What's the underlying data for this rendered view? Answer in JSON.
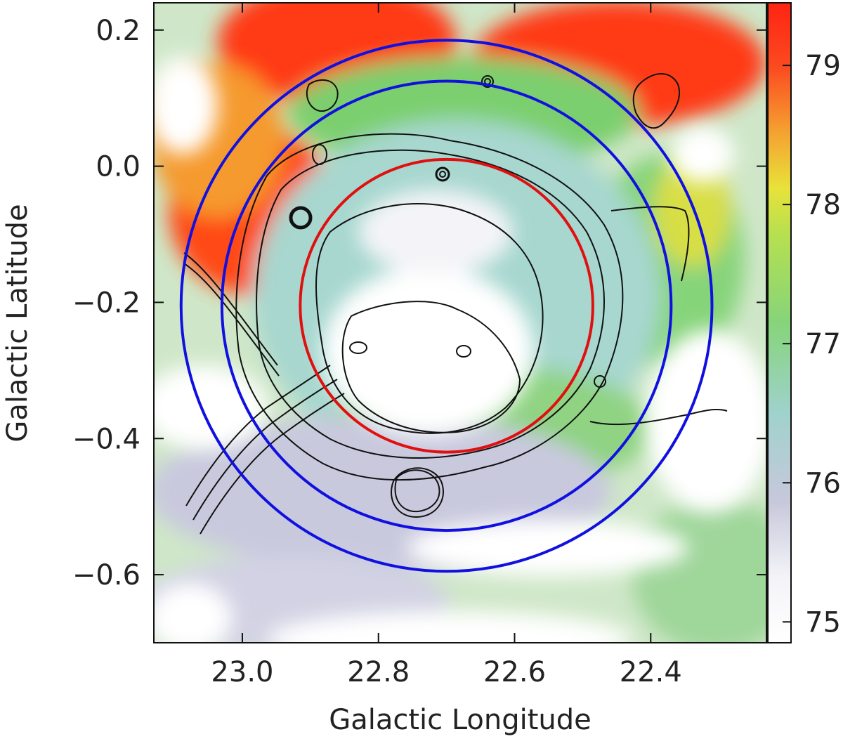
{
  "chart_data": {
    "type": "heatmap",
    "title": "",
    "xlabel": "Galactic Longitude",
    "ylabel": "Galactic Latitude",
    "xlim": [
      23.13,
      22.23
    ],
    "ylim": [
      -0.7,
      0.24
    ],
    "x_ticks": [
      {
        "value": 23.0,
        "label": "23.0"
      },
      {
        "value": 22.8,
        "label": "22.8"
      },
      {
        "value": 22.6,
        "label": "22.6"
      },
      {
        "value": 22.4,
        "label": "22.4"
      }
    ],
    "y_ticks": [
      {
        "value": 0.2,
        "label": "0.2"
      },
      {
        "value": 0.0,
        "label": "0.0"
      },
      {
        "value": -0.2,
        "label": "−0.2"
      },
      {
        "value": -0.4,
        "label": "−0.4"
      },
      {
        "value": -0.6,
        "label": "−0.6"
      }
    ],
    "colorbar": {
      "range": [
        74.85,
        79.45
      ],
      "ticks": [
        {
          "value": 79,
          "label": "79"
        },
        {
          "value": 78,
          "label": "78"
        },
        {
          "value": 77,
          "label": "77"
        },
        {
          "value": 76,
          "label": "76"
        },
        {
          "value": 75,
          "label": "75"
        }
      ],
      "colormap": "white-lavender-teal-green-yellow-orange-red"
    },
    "circles": [
      {
        "color": "#e01010",
        "center_l": 22.7,
        "center_b": -0.205,
        "radius_deg": 0.215
      },
      {
        "color": "#1010e0",
        "center_l": 22.7,
        "center_b": -0.205,
        "radius_deg": 0.33
      },
      {
        "color": "#1010e0",
        "center_l": 22.7,
        "center_b": -0.205,
        "radius_deg": 0.39
      }
    ],
    "map_regions": [
      {
        "name": "northeast-red-cloud",
        "l": 22.87,
        "b": 0.18,
        "value": 79.3
      },
      {
        "name": "northwest-red-cloud",
        "l": 22.47,
        "b": 0.16,
        "value": 79.2
      },
      {
        "name": "east-red-cloud",
        "l": 22.98,
        "b": -0.09,
        "value": 79.0
      },
      {
        "name": "inner-cavity",
        "l": 22.68,
        "b": -0.28,
        "value": 74.9
      },
      {
        "name": "southern-shell",
        "l": 22.8,
        "b": -0.5,
        "value": 76.0
      }
    ],
    "grid": false,
    "legend": "none"
  }
}
